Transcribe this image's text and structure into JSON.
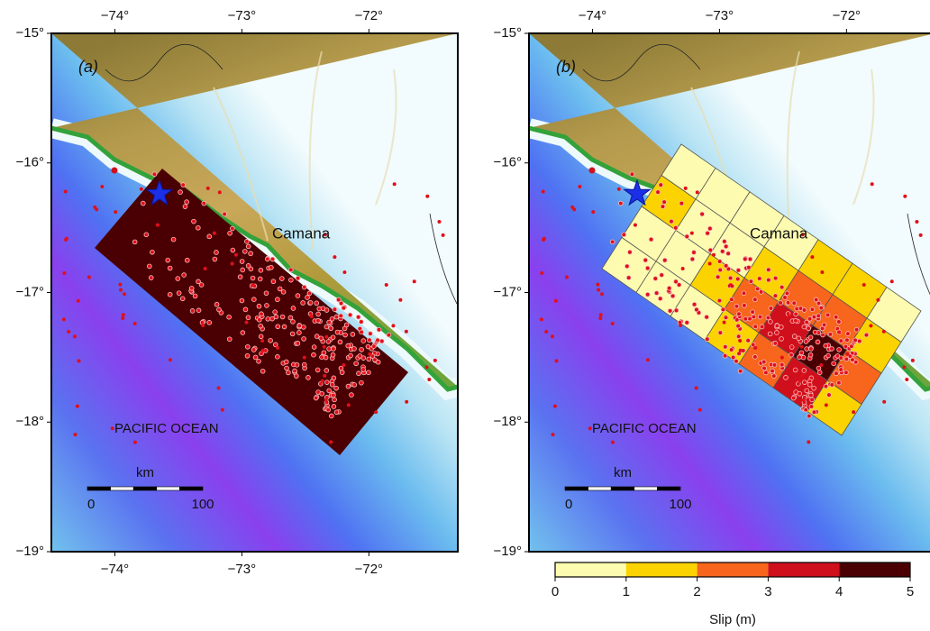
{
  "map": {
    "lon_ticks": [
      {
        "value": -74,
        "label": "−74°"
      },
      {
        "value": -73,
        "label": "−73°"
      },
      {
        "value": -72,
        "label": "−72°"
      }
    ],
    "lat_ticks": [
      {
        "value": -15,
        "label": "−15°"
      },
      {
        "value": -16,
        "label": "−16°"
      },
      {
        "value": -17,
        "label": "−17°"
      },
      {
        "value": -18,
        "label": "−18°"
      },
      {
        "value": -19,
        "label": "−19°"
      }
    ],
    "lonlim": [
      -74.5,
      -71.3
    ],
    "latlim": [
      -15,
      -19
    ]
  },
  "panels": [
    {
      "label": "(a)"
    },
    {
      "label": "(b)"
    }
  ],
  "places": {
    "city": "Camana",
    "ocean": "PACIFIC OCEAN"
  },
  "scale_bar": {
    "unit": "km",
    "ticks": [
      0,
      100
    ]
  },
  "slip_grid": [
    [
      0.5,
      0.5,
      0.5,
      0.5,
      1.5,
      1.5,
      0.5
    ],
    [
      1.5,
      0.5,
      0.5,
      1.5,
      2.5,
      2.5,
      1.5
    ],
    [
      0.5,
      0.5,
      1.5,
      2.5,
      3.5,
      4.5,
      2.5
    ],
    [
      0.5,
      0.5,
      0.5,
      1.5,
      2.5,
      3.5,
      1.5
    ]
  ],
  "colorbar": {
    "ticks": [
      0,
      1,
      2,
      3,
      4,
      5
    ],
    "colors": [
      "#fdfbb0",
      "#fbd300",
      "#f7661c",
      "#cf0f1c",
      "#4a0003"
    ],
    "label": "Slip (m)"
  }
}
